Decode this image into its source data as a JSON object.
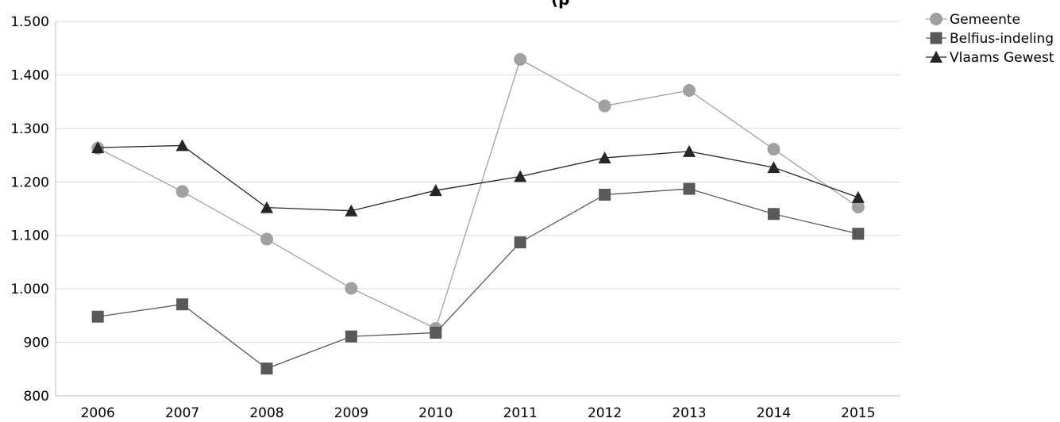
{
  "chart_data": {
    "type": "line",
    "categories": [
      "2006",
      "2007",
      "2008",
      "2009",
      "2010",
      "2011",
      "2012",
      "2013",
      "2014",
      "2015"
    ],
    "series": [
      {
        "name": "Gemeente",
        "marker": "circle",
        "color": "#a0a0a0",
        "values": [
          1263,
          1182,
          1093,
          1001,
          926,
          1429,
          1342,
          1371,
          1261,
          1153
        ]
      },
      {
        "name": "Belfius-indeling",
        "marker": "square",
        "color": "#595959",
        "values": [
          948,
          971,
          851,
          911,
          918,
          1087,
          1176,
          1187,
          1140,
          1103
        ]
      },
      {
        "name": "Vlaams Gewest",
        "marker": "triangle",
        "color": "#262626",
        "values": [
          1264,
          1268,
          1152,
          1146,
          1184,
          1210,
          1245,
          1257,
          1227,
          1171
        ]
      }
    ],
    "ylim": [
      800,
      1500
    ],
    "yticks": [
      800,
      900,
      1000,
      1100,
      1200,
      1300,
      1400,
      1500
    ],
    "ytick_labels": [
      "800",
      "900",
      "1.000",
      "1.100",
      "1.200",
      "1.300",
      "1.400",
      "1.500"
    ],
    "grid": true,
    "legend_position": "top-right",
    "title_fragment": "(p"
  }
}
